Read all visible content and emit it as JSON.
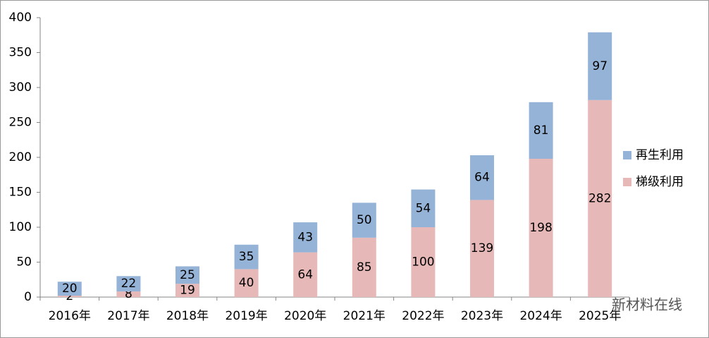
{
  "chart_data": {
    "type": "bar",
    "stacked": true,
    "categories": [
      "2016年",
      "2017年",
      "2018年",
      "2019年",
      "2020年",
      "2021年",
      "2022年",
      "2023年",
      "2024年",
      "2025年"
    ],
    "series": [
      {
        "name": "梯级利用",
        "color": "#e6b9b8",
        "values": [
          2,
          8,
          19,
          40,
          64,
          85,
          100,
          139,
          198,
          282
        ]
      },
      {
        "name": "再生利用",
        "color": "#95b3d7",
        "values": [
          20,
          22,
          25,
          35,
          43,
          50,
          54,
          64,
          81,
          97
        ]
      }
    ],
    "ylim": [
      0,
      400
    ],
    "yticks": [
      0,
      50,
      100,
      150,
      200,
      250,
      300,
      350,
      400
    ],
    "grid": false,
    "legend": "right",
    "watermark": "新材料在线"
  }
}
